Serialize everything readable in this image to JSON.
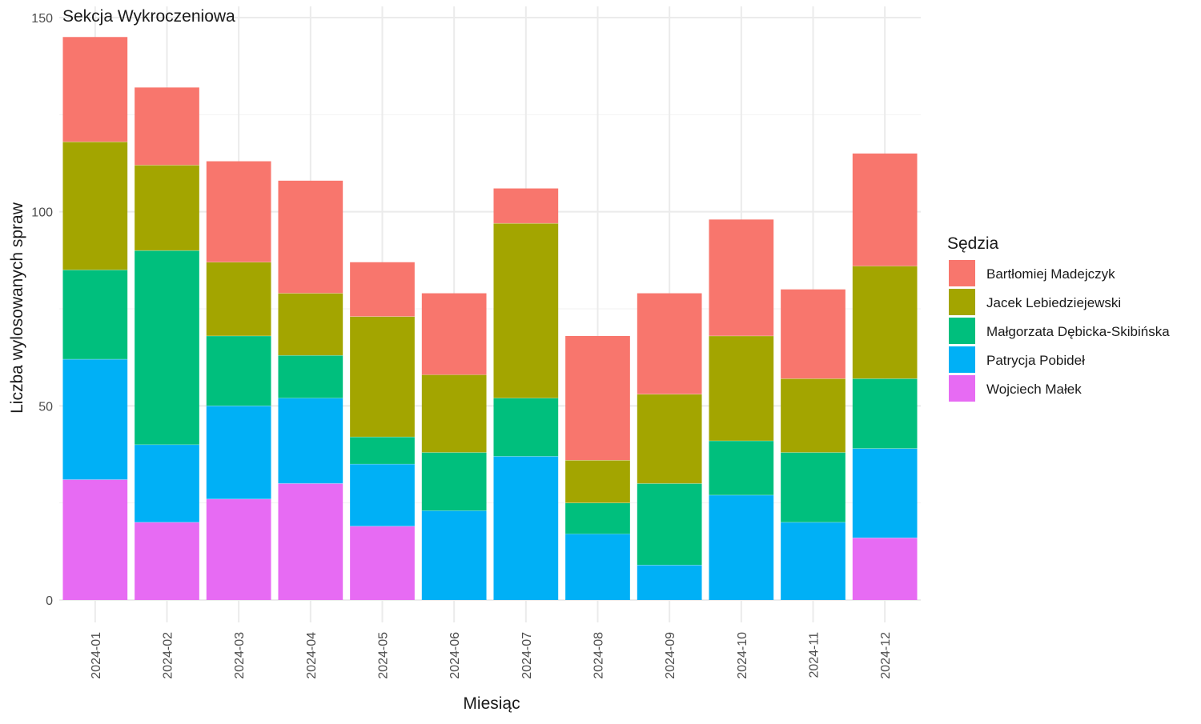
{
  "chart_data": {
    "type": "bar",
    "stacked": true,
    "title": "",
    "facet_label": "Sekcja Wykroczeniowa",
    "xlabel": "Miesiąc",
    "ylabel": "Liczba wylosowanych spraw",
    "ylim": [
      0,
      150
    ],
    "yticks": [
      0,
      50,
      100,
      150
    ],
    "grid": true,
    "legend_title": "Sędzia",
    "legend_position": "right",
    "categories": [
      "2024-01",
      "2024-02",
      "2024-03",
      "2024-04",
      "2024-05",
      "2024-06",
      "2024-07",
      "2024-08",
      "2024-09",
      "2024-10",
      "2024-11",
      "2024-12"
    ],
    "series": [
      {
        "name": "Wojciech Małek",
        "color": "#E76BF3",
        "values": [
          31,
          20,
          26,
          30,
          19,
          0,
          0,
          0,
          0,
          0,
          0,
          16
        ]
      },
      {
        "name": "Patrycja Pobideł",
        "color": "#00B0F6",
        "values": [
          31,
          20,
          24,
          22,
          16,
          23,
          37,
          17,
          9,
          27,
          20,
          23
        ]
      },
      {
        "name": "Małgorzata Dębicka-Skibińska",
        "color": "#00BF7D",
        "values": [
          23,
          50,
          18,
          11,
          7,
          15,
          15,
          8,
          21,
          14,
          18,
          18
        ]
      },
      {
        "name": "Jacek Lebiedziejewski",
        "color": "#A3A500",
        "values": [
          33,
          22,
          19,
          16,
          31,
          20,
          45,
          11,
          23,
          27,
          19,
          29
        ]
      },
      {
        "name": "Bartłomiej Madejczyk",
        "color": "#F8766D",
        "values": [
          27,
          20,
          26,
          29,
          14,
          21,
          9,
          32,
          26,
          30,
          23,
          29
        ]
      }
    ],
    "legend_order": [
      "Bartłomiej Madejczyk",
      "Jacek Lebiedziejewski",
      "Małgorzata Dębicka-Skibińska",
      "Patrycja Pobideł",
      "Wojciech Małek"
    ]
  }
}
